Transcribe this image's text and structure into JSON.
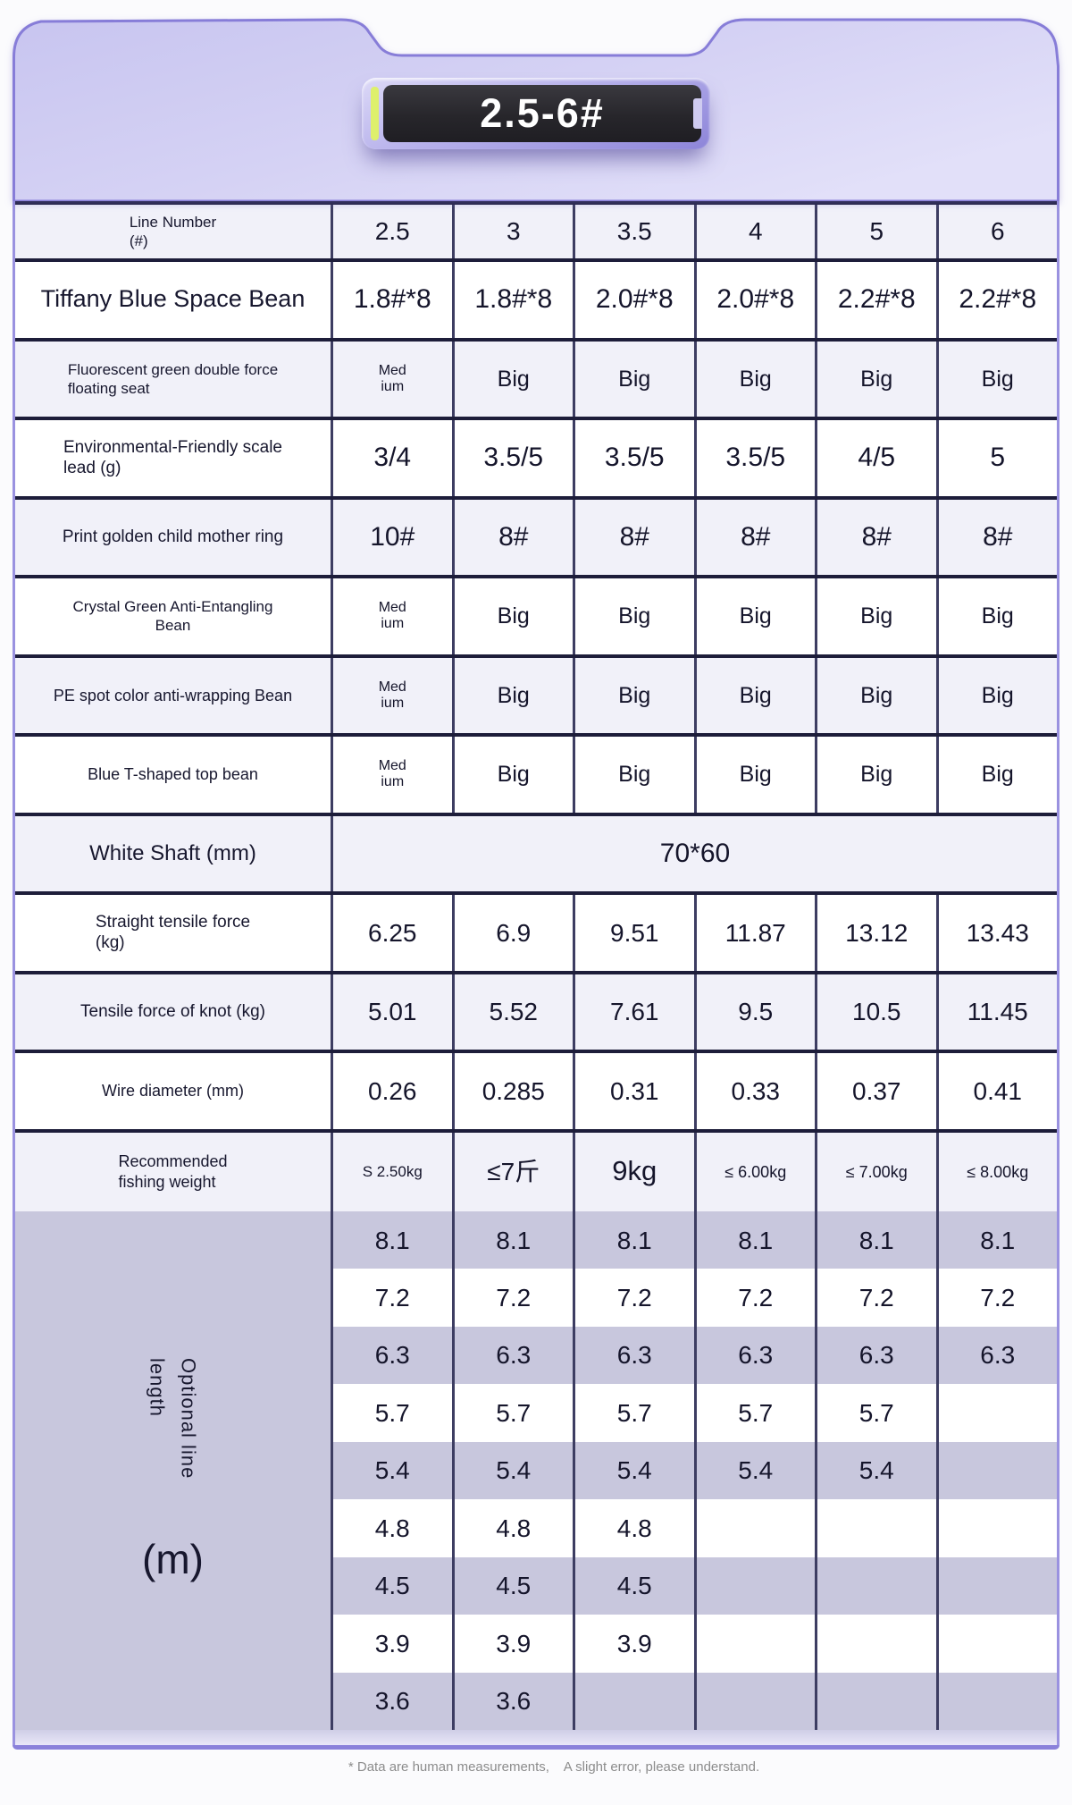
{
  "badge": {
    "label": "2.5-6#"
  },
  "colors": {
    "header_gradient_start": "#c8c5f0",
    "header_gradient_end": "#e2e0f9",
    "badge_black": "#26252a",
    "badge_stripe_yellow": "#def06c",
    "row_lavender": "#f1f1f9",
    "optional_lavender": "#c8c7dd",
    "grid_line": "#3d3d62",
    "row_divider": "#1d1d3a",
    "card_border_purple": "#9a92e0"
  },
  "table": {
    "header": {
      "label": "Line Number\n(#)",
      "columns": [
        "2.5",
        "3",
        "3.5",
        "4",
        "5",
        "6"
      ]
    },
    "rows": [
      {
        "label": "Tiffany Blue Space Bean",
        "values": [
          "1.8#*8",
          "1.8#*8",
          "2.0#*8",
          "2.0#*8",
          "2.2#*8",
          "2.2#*8"
        ]
      },
      {
        "label": "Fluorescent green double force\nfloating seat",
        "values": [
          "Med\nium",
          "Big",
          "Big",
          "Big",
          "Big",
          "Big"
        ]
      },
      {
        "label": "Environmental-Friendly scale\nlead (g)",
        "values": [
          "3/4",
          "3.5/5",
          "3.5/5",
          "3.5/5",
          "4/5",
          "5"
        ]
      },
      {
        "label": "Print golden child mother ring",
        "values": [
          "10#",
          "8#",
          "8#",
          "8#",
          "8#",
          "8#"
        ]
      },
      {
        "label": "Crystal Green Anti-Entangling\nBean",
        "values": [
          "Med\nium",
          "Big",
          "Big",
          "Big",
          "Big",
          "Big"
        ]
      },
      {
        "label": "PE spot color anti-wrapping Bean",
        "values": [
          "Med\nium",
          "Big",
          "Big",
          "Big",
          "Big",
          "Big"
        ]
      },
      {
        "label": "Blue T-shaped top bean",
        "values": [
          "Med\nium",
          "Big",
          "Big",
          "Big",
          "Big",
          "Big"
        ]
      },
      {
        "label": "White Shaft (mm)",
        "merged_value": "70*60"
      },
      {
        "label": "Straight tensile force\n(kg)",
        "values": [
          "6.25",
          "6.9",
          "9.51",
          "11.87",
          "13.12",
          "13.43"
        ]
      },
      {
        "label": "Tensile force of knot (kg)",
        "values": [
          "5.01",
          "5.52",
          "7.61",
          "9.5",
          "10.5",
          "11.45"
        ]
      },
      {
        "label": "Wire diameter (mm)",
        "values": [
          "0.26",
          "0.285",
          "0.31",
          "0.33",
          "0.37",
          "0.41"
        ]
      },
      {
        "label": "Recommended\nfishing weight",
        "values": [
          "S 2.50kg",
          "≤7斤",
          "9kg",
          "≤ 6.00kg",
          "≤ 7.00kg",
          "≤ 8.00kg"
        ]
      }
    ],
    "optional": {
      "label": "Optional line\nlength",
      "unit": "(m)",
      "rows": [
        [
          "8.1",
          "8.1",
          "8.1",
          "8.1",
          "8.1",
          "8.1"
        ],
        [
          "7.2",
          "7.2",
          "7.2",
          "7.2",
          "7.2",
          "7.2"
        ],
        [
          "6.3",
          "6.3",
          "6.3",
          "6.3",
          "6.3",
          "6.3"
        ],
        [
          "5.7",
          "5.7",
          "5.7",
          "5.7",
          "5.7",
          ""
        ],
        [
          "5.4",
          "5.4",
          "5.4",
          "5.4",
          "5.4",
          ""
        ],
        [
          "4.8",
          "4.8",
          "4.8",
          "",
          "",
          ""
        ],
        [
          "4.5",
          "4.5",
          "4.5",
          "",
          "",
          ""
        ],
        [
          "3.9",
          "3.9",
          "3.9",
          "",
          "",
          ""
        ],
        [
          "3.6",
          "3.6",
          "",
          "",
          "",
          ""
        ]
      ]
    }
  },
  "footer": {
    "note": "* Data are human measurements,    A slight error, please understand."
  }
}
